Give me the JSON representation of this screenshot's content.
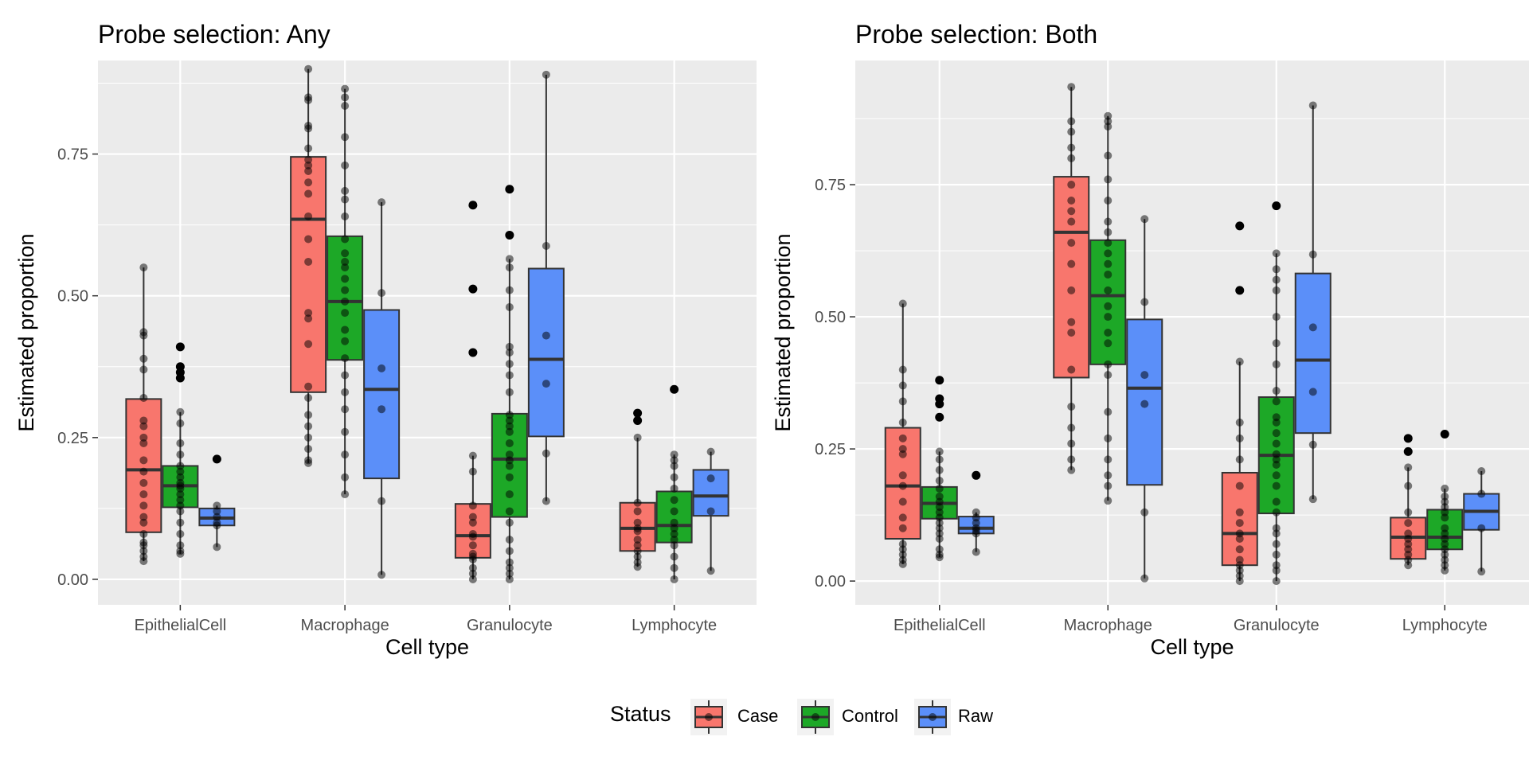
{
  "figure": {
    "legend_title": "Status",
    "legend_items": [
      {
        "name": "Case",
        "color": "#F8766D"
      },
      {
        "name": "Control",
        "color": "#1DA827"
      },
      {
        "name": "Raw",
        "color": "#5B8FF9"
      }
    ]
  },
  "chart_data": [
    {
      "type": "box",
      "title": "Probe selection: Any",
      "xlabel": "Cell type",
      "ylabel": "Estimated proportion",
      "categories": [
        "EpithelialCell",
        "Macrophage",
        "Granulocyte",
        "Lymphocyte"
      ],
      "yticks": [
        "0.00",
        "0.25",
        "0.50",
        "0.75"
      ],
      "ylim": [
        -0.045,
        0.915
      ],
      "legend_position": "bottom",
      "grid": true,
      "series": [
        {
          "name": "Case",
          "boxes": [
            {
              "q1": 0.083,
              "median": 0.193,
              "q3": 0.318,
              "whisker_low": 0.032,
              "whisker_high": 0.55,
              "points": [
                0.55,
                0.436,
                0.43,
                0.389,
                0.37,
                0.32,
                0.28,
                0.27,
                0.25,
                0.24,
                0.21,
                0.19,
                0.17,
                0.15,
                0.13,
                0.11,
                0.1,
                0.08,
                0.065,
                0.06,
                0.05,
                0.04,
                0.032
              ]
            },
            {
              "q1": 0.33,
              "median": 0.635,
              "q3": 0.745,
              "whisker_low": 0.205,
              "whisker_high": 0.9,
              "points": [
                0.9,
                0.85,
                0.845,
                0.8,
                0.795,
                0.76,
                0.74,
                0.73,
                0.72,
                0.7,
                0.68,
                0.64,
                0.6,
                0.56,
                0.47,
                0.46,
                0.415,
                0.34,
                0.32,
                0.29,
                0.27,
                0.25,
                0.23,
                0.21,
                0.205
              ]
            },
            {
              "q1": 0.038,
              "median": 0.077,
              "q3": 0.133,
              "whisker_low": 0.0,
              "whisker_high": 0.218,
              "outliers": [
                0.66,
                0.512,
                0.4
              ],
              "points": [
                0.218,
                0.19,
                0.13,
                0.11,
                0.1,
                0.08,
                0.075,
                0.06,
                0.045,
                0.04,
                0.035,
                0.02,
                0.01,
                0.0
              ]
            },
            {
              "q1": 0.05,
              "median": 0.09,
              "q3": 0.135,
              "whisker_low": 0.022,
              "whisker_high": 0.25,
              "outliers": [
                0.293,
                0.28
              ],
              "points": [
                0.25,
                0.135,
                0.12,
                0.1,
                0.09,
                0.085,
                0.07,
                0.06,
                0.05,
                0.04,
                0.03,
                0.022
              ]
            }
          ]
        },
        {
          "name": "Control",
          "boxes": [
            {
              "q1": 0.127,
              "median": 0.165,
              "q3": 0.2,
              "whisker_low": 0.045,
              "whisker_high": 0.295,
              "outliers": [
                0.41,
                0.375,
                0.365,
                0.355
              ],
              "points": [
                0.295,
                0.275,
                0.24,
                0.22,
                0.2,
                0.19,
                0.18,
                0.17,
                0.165,
                0.16,
                0.15,
                0.14,
                0.13,
                0.12,
                0.1,
                0.08,
                0.06,
                0.05,
                0.045
              ]
            },
            {
              "q1": 0.387,
              "median": 0.49,
              "q3": 0.605,
              "whisker_low": 0.15,
              "whisker_high": 0.865,
              "points": [
                0.865,
                0.85,
                0.835,
                0.78,
                0.73,
                0.685,
                0.67,
                0.64,
                0.6,
                0.575,
                0.56,
                0.55,
                0.53,
                0.51,
                0.49,
                0.47,
                0.44,
                0.42,
                0.39,
                0.36,
                0.33,
                0.3,
                0.26,
                0.22,
                0.18,
                0.15
              ]
            },
            {
              "q1": 0.11,
              "median": 0.212,
              "q3": 0.292,
              "whisker_low": 0.0,
              "whisker_high": 0.565,
              "outliers": [
                0.688,
                0.607
              ],
              "points": [
                0.565,
                0.55,
                0.51,
                0.48,
                0.41,
                0.4,
                0.38,
                0.36,
                0.33,
                0.29,
                0.28,
                0.27,
                0.26,
                0.24,
                0.22,
                0.21,
                0.2,
                0.18,
                0.15,
                0.12,
                0.1,
                0.07,
                0.05,
                0.03,
                0.02,
                0.01,
                0.0
              ]
            },
            {
              "q1": 0.065,
              "median": 0.095,
              "q3": 0.155,
              "whisker_low": 0.0,
              "whisker_high": 0.22,
              "outliers": [
                0.335
              ],
              "points": [
                0.22,
                0.21,
                0.2,
                0.18,
                0.16,
                0.14,
                0.12,
                0.1,
                0.09,
                0.08,
                0.07,
                0.06,
                0.04,
                0.02,
                0.0
              ]
            }
          ]
        },
        {
          "name": "Raw",
          "boxes": [
            {
              "q1": 0.095,
              "median": 0.108,
              "q3": 0.125,
              "whisker_low": 0.057,
              "whisker_high": 0.13,
              "outliers": [
                0.212
              ],
              "points": [
                0.13,
                0.12,
                0.11,
                0.1,
                0.095,
                0.057
              ]
            },
            {
              "q1": 0.178,
              "median": 0.335,
              "q3": 0.475,
              "whisker_low": 0.008,
              "whisker_high": 0.665,
              "points": [
                0.665,
                0.505,
                0.372,
                0.3,
                0.138,
                0.008
              ]
            },
            {
              "q1": 0.252,
              "median": 0.388,
              "q3": 0.548,
              "whisker_low": 0.138,
              "whisker_high": 0.89,
              "points": [
                0.89,
                0.588,
                0.43,
                0.345,
                0.222,
                0.138
              ]
            },
            {
              "q1": 0.112,
              "median": 0.147,
              "q3": 0.193,
              "whisker_low": 0.015,
              "whisker_high": 0.225,
              "points": [
                0.225,
                0.178,
                0.12,
                0.015
              ]
            }
          ]
        }
      ]
    },
    {
      "type": "box",
      "title": "Probe selection: Both",
      "xlabel": "Cell type",
      "ylabel": "Estimated proportion",
      "categories": [
        "EpithelialCell",
        "Macrophage",
        "Granulocyte",
        "Lymphocyte"
      ],
      "yticks": [
        "0.00",
        "0.25",
        "0.50",
        "0.75"
      ],
      "ylim": [
        -0.045,
        0.985
      ],
      "legend_position": "bottom",
      "grid": true,
      "series": [
        {
          "name": "Case",
          "boxes": [
            {
              "q1": 0.08,
              "median": 0.18,
              "q3": 0.29,
              "whisker_low": 0.032,
              "whisker_high": 0.525,
              "points": [
                0.525,
                0.4,
                0.37,
                0.34,
                0.3,
                0.27,
                0.25,
                0.24,
                0.2,
                0.18,
                0.15,
                0.12,
                0.1,
                0.07,
                0.06,
                0.05,
                0.04,
                0.032
              ]
            },
            {
              "q1": 0.385,
              "median": 0.66,
              "q3": 0.765,
              "whisker_low": 0.21,
              "whisker_high": 0.935,
              "points": [
                0.935,
                0.87,
                0.85,
                0.82,
                0.8,
                0.75,
                0.72,
                0.7,
                0.68,
                0.64,
                0.6,
                0.55,
                0.49,
                0.47,
                0.4,
                0.33,
                0.29,
                0.26,
                0.23,
                0.21
              ]
            },
            {
              "q1": 0.03,
              "median": 0.09,
              "q3": 0.205,
              "whisker_low": 0.0,
              "whisker_high": 0.415,
              "outliers": [
                0.672,
                0.55
              ],
              "points": [
                0.415,
                0.3,
                0.27,
                0.23,
                0.18,
                0.13,
                0.11,
                0.09,
                0.08,
                0.06,
                0.04,
                0.03,
                0.02,
                0.01,
                0.0
              ]
            },
            {
              "q1": 0.042,
              "median": 0.083,
              "q3": 0.12,
              "whisker_low": 0.03,
              "whisker_high": 0.215,
              "outliers": [
                0.27,
                0.245
              ],
              "points": [
                0.215,
                0.18,
                0.13,
                0.11,
                0.09,
                0.08,
                0.07,
                0.06,
                0.05,
                0.04,
                0.03
              ]
            }
          ]
        },
        {
          "name": "Control",
          "boxes": [
            {
              "q1": 0.118,
              "median": 0.147,
              "q3": 0.178,
              "whisker_low": 0.045,
              "whisker_high": 0.245,
              "outliers": [
                0.38,
                0.345,
                0.335,
                0.31
              ],
              "points": [
                0.245,
                0.23,
                0.21,
                0.19,
                0.175,
                0.16,
                0.15,
                0.14,
                0.13,
                0.12,
                0.11,
                0.1,
                0.09,
                0.08,
                0.06,
                0.05,
                0.045
              ]
            },
            {
              "q1": 0.41,
              "median": 0.54,
              "q3": 0.645,
              "whisker_low": 0.152,
              "whisker_high": 0.88,
              "points": [
                0.88,
                0.87,
                0.86,
                0.805,
                0.76,
                0.72,
                0.68,
                0.66,
                0.64,
                0.62,
                0.6,
                0.58,
                0.55,
                0.52,
                0.5,
                0.47,
                0.45,
                0.41,
                0.39,
                0.32,
                0.27,
                0.23,
                0.2,
                0.18,
                0.152
              ]
            },
            {
              "q1": 0.128,
              "median": 0.238,
              "q3": 0.348,
              "whisker_low": 0.0,
              "whisker_high": 0.62,
              "outliers": [
                0.71
              ],
              "points": [
                0.62,
                0.59,
                0.57,
                0.55,
                0.5,
                0.45,
                0.41,
                0.36,
                0.34,
                0.31,
                0.3,
                0.28,
                0.26,
                0.24,
                0.23,
                0.22,
                0.2,
                0.18,
                0.15,
                0.13,
                0.1,
                0.09,
                0.07,
                0.05,
                0.03,
                0.02,
                0.0
              ]
            },
            {
              "q1": 0.06,
              "median": 0.083,
              "q3": 0.135,
              "whisker_low": 0.02,
              "whisker_high": 0.175,
              "outliers": [
                0.278
              ],
              "points": [
                0.175,
                0.16,
                0.15,
                0.14,
                0.13,
                0.12,
                0.1,
                0.09,
                0.08,
                0.07,
                0.06,
                0.05,
                0.04,
                0.03,
                0.02
              ]
            }
          ]
        },
        {
          "name": "Raw",
          "boxes": [
            {
              "q1": 0.09,
              "median": 0.1,
              "q3": 0.122,
              "whisker_low": 0.055,
              "whisker_high": 0.13,
              "outliers": [
                0.2
              ],
              "points": [
                0.13,
                0.12,
                0.11,
                0.1,
                0.095,
                0.09,
                0.055
              ]
            },
            {
              "q1": 0.182,
              "median": 0.365,
              "q3": 0.495,
              "whisker_low": 0.005,
              "whisker_high": 0.685,
              "points": [
                0.685,
                0.528,
                0.39,
                0.335,
                0.13,
                0.005
              ]
            },
            {
              "q1": 0.28,
              "median": 0.418,
              "q3": 0.582,
              "whisker_low": 0.155,
              "whisker_high": 0.9,
              "points": [
                0.9,
                0.618,
                0.48,
                0.358,
                0.258,
                0.155
              ]
            },
            {
              "q1": 0.097,
              "median": 0.132,
              "q3": 0.165,
              "whisker_low": 0.018,
              "whisker_high": 0.208,
              "points": [
                0.208,
                0.165,
                0.1,
                0.018
              ]
            }
          ]
        }
      ]
    }
  ]
}
